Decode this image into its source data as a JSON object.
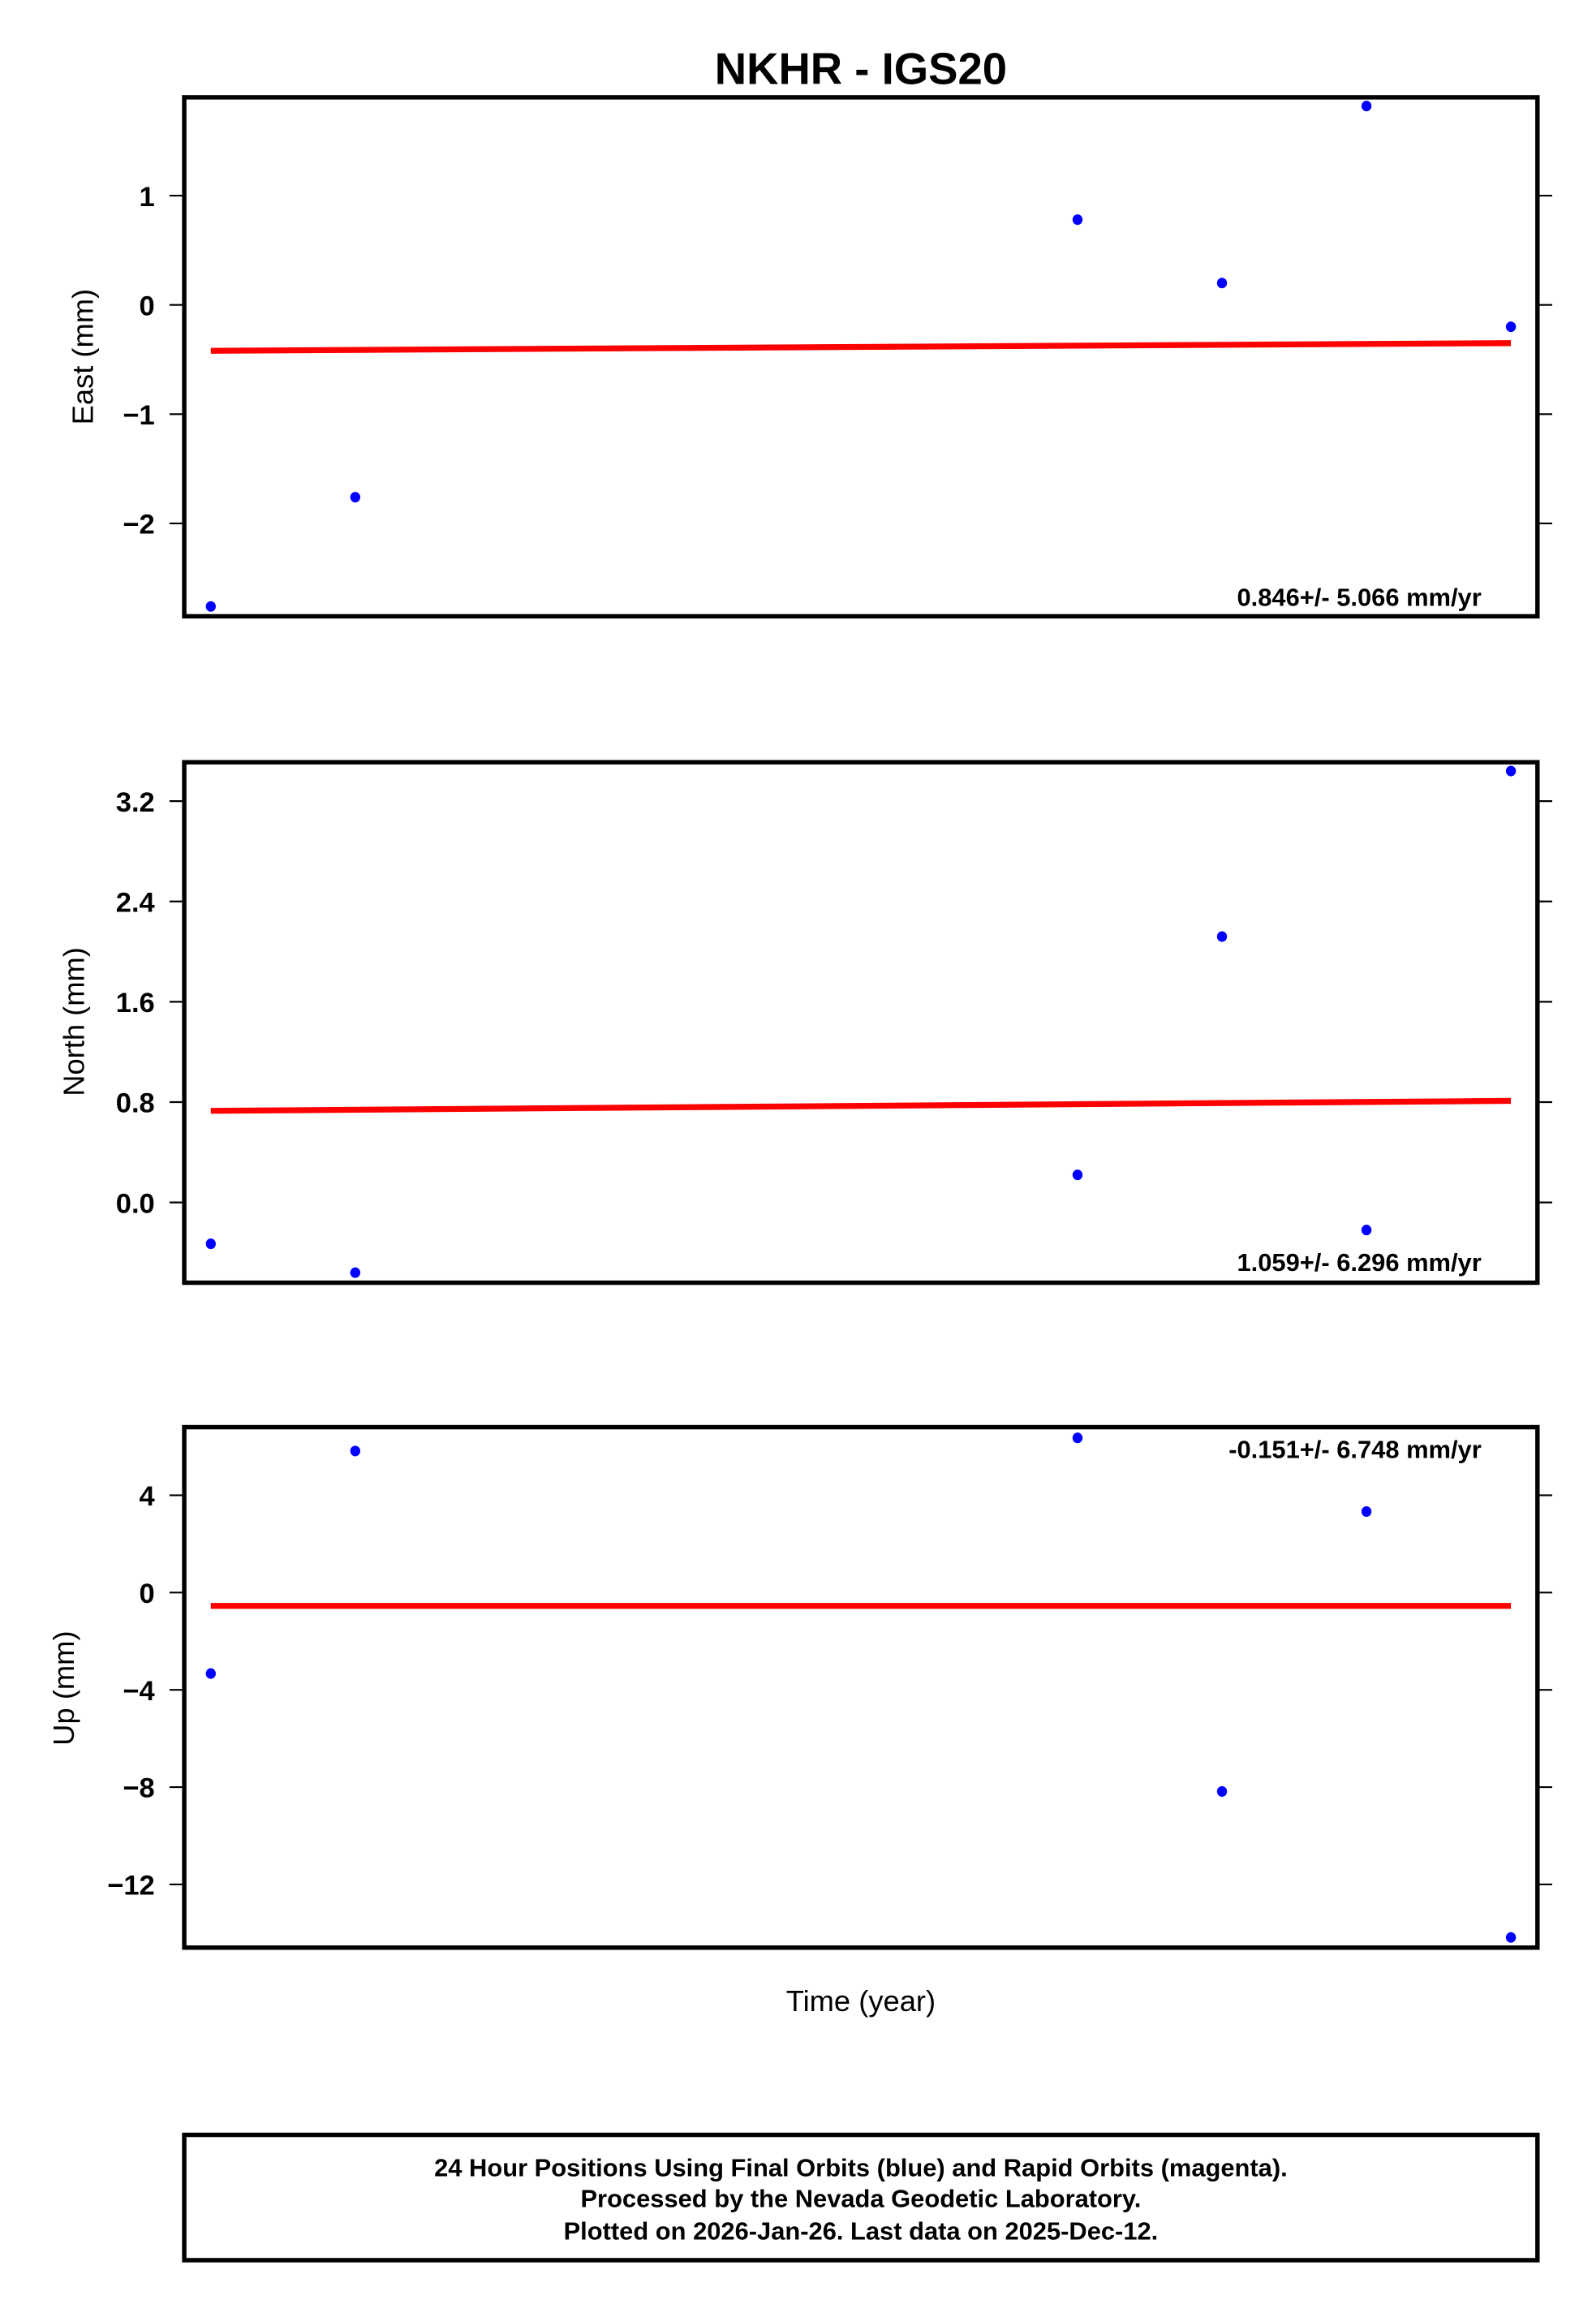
{
  "title": "NKHR - IGS20",
  "xlabel": "Time (year)",
  "colors": {
    "points": "#0000ff",
    "fit_line": "#ff0000",
    "frame": "#000000"
  },
  "footer": {
    "lines": [
      "24 Hour Positions Using Final Orbits (blue) and Rapid Orbits (magenta).",
      "Processed by the Nevada Geodetic Laboratory.",
      "Plotted on 2026-Jan-26. Last data on 2025-Dec-12."
    ]
  },
  "chart_data": [
    {
      "type": "scatter",
      "title": "NKHR - IGS20",
      "panel": "east",
      "xlabel": "Time (year)",
      "ylabel": "East (mm)",
      "ylim": [
        -2.85,
        1.9
      ],
      "yticks": [
        1,
        0,
        -1,
        -2
      ],
      "ytick_labels": [
        "1",
        "0",
        "−1",
        "−2"
      ],
      "grid": false,
      "x_index": [
        0,
        1,
        6,
        7,
        8,
        9
      ],
      "points": [
        -2.76,
        -1.76,
        0.78,
        0.2,
        1.82,
        -0.2
      ],
      "fit_line": {
        "start": -0.42,
        "end": -0.35
      },
      "rate_annotation": "0.846+/- 5.066 mm/yr",
      "annotation_position": "bottom-right"
    },
    {
      "type": "scatter",
      "panel": "north",
      "xlabel": "Time (year)",
      "ylabel": "North (mm)",
      "ylim": [
        -0.64,
        3.51
      ],
      "yticks": [
        3.2,
        2.4,
        1.6,
        0.8,
        0.0
      ],
      "ytick_labels": [
        "3.2",
        "2.4",
        "1.6",
        "0.8",
        "0.0"
      ],
      "grid": false,
      "x_index": [
        0,
        1,
        6,
        7,
        8,
        9
      ],
      "points": [
        -0.33,
        -0.56,
        0.22,
        2.12,
        -0.22,
        3.44
      ],
      "fit_line": {
        "start": 0.73,
        "end": 0.81
      },
      "rate_annotation": "1.059+/- 6.296 mm/yr",
      "annotation_position": "bottom-right"
    },
    {
      "type": "scatter",
      "panel": "up",
      "xlabel": "Time (year)",
      "ylabel": "Up (mm)",
      "ylim": [
        -14.6,
        6.8
      ],
      "yticks": [
        4,
        0,
        -4,
        -8,
        -12
      ],
      "ytick_labels": [
        "4",
        "0",
        "−4",
        "−8",
        "−12"
      ],
      "grid": false,
      "x_index": [
        0,
        1,
        6,
        7,
        8,
        9
      ],
      "points": [
        -3.33,
        5.82,
        6.36,
        -8.18,
        3.33,
        -14.18
      ],
      "fit_line": {
        "start": -0.55,
        "end": -0.55
      },
      "rate_annotation": "-0.151+/- 6.748 mm/yr",
      "annotation_position": "top-right"
    }
  ]
}
